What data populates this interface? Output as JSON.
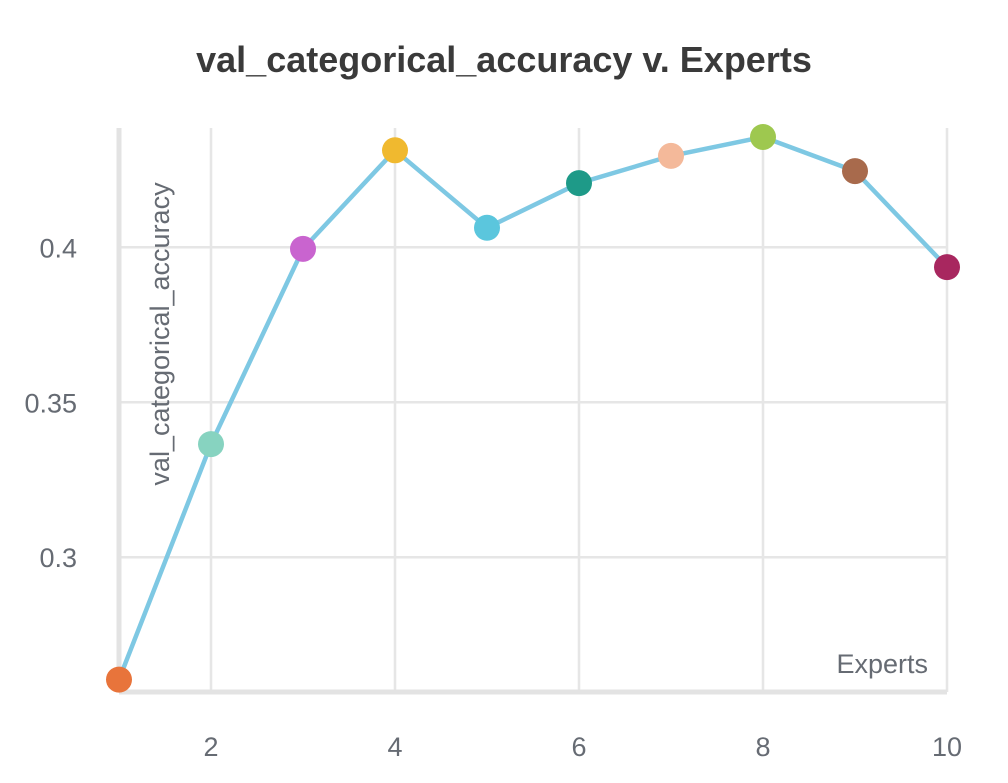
{
  "chart_data": {
    "type": "line",
    "title": "val_categorical_accuracy v. Experts",
    "xlabel": "Experts",
    "ylabel": "val_categorical_accuracy",
    "x": [
      1,
      2,
      3,
      4,
      5,
      6,
      7,
      8,
      9,
      10
    ],
    "series": [
      {
        "values": [
          0.2605,
          0.3365,
          0.3995,
          0.4313,
          0.4063,
          0.4207,
          0.4295,
          0.4356,
          0.4246,
          0.3936
        ]
      }
    ],
    "point_colors": [
      "#e8743b",
      "#87d3c0",
      "#c964cf",
      "#f0b92f",
      "#5bc6dd",
      "#1e9a88",
      "#f4b99a",
      "#9ec84f",
      "#a86a4c",
      "#a8275f"
    ],
    "line_color": "#7ec8e3",
    "x_ticks": [
      "2",
      "4",
      "6",
      "8",
      "10"
    ],
    "y_ticks": [
      "0.3",
      "0.35",
      "0.4"
    ],
    "xlim": [
      1,
      10
    ],
    "ylim": [
      0.2565,
      0.4385
    ],
    "grid": true,
    "legend": "none"
  }
}
